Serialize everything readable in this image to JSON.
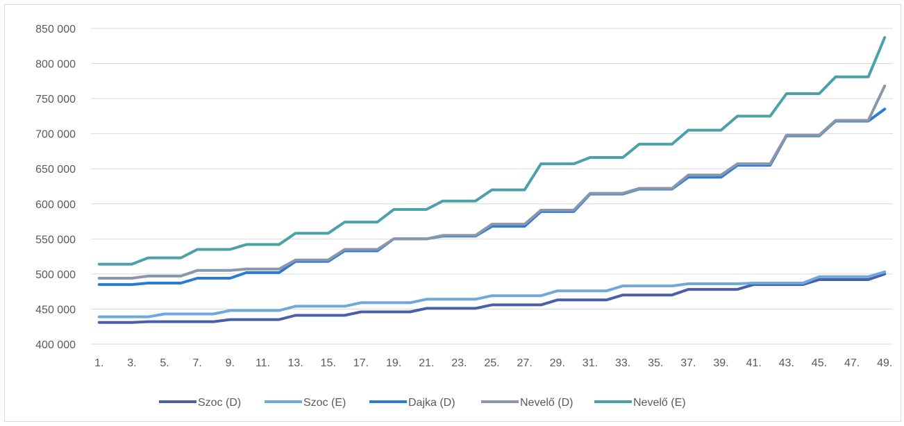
{
  "chart_data": {
    "type": "line",
    "title": "",
    "xlabel": "",
    "ylabel": "",
    "ylim": [
      400000,
      850000
    ],
    "ytick_step": 50000,
    "ytick_labels": [
      "400 000",
      "450 000",
      "500 000",
      "550 000",
      "600 000",
      "650 000",
      "700 000",
      "750 000",
      "800 000",
      "850 000"
    ],
    "x": [
      "1.",
      "2.",
      "3.",
      "4.",
      "5.",
      "6.",
      "7.",
      "8.",
      "9.",
      "10.",
      "11.",
      "12.",
      "13.",
      "14.",
      "15.",
      "16.",
      "17.",
      "18.",
      "19.",
      "20.",
      "21.",
      "22.",
      "23.",
      "24.",
      "25.",
      "26.",
      "27.",
      "28.",
      "29.",
      "30.",
      "31.",
      "32.",
      "33.",
      "34.",
      "35.",
      "36.",
      "37.",
      "38.",
      "39.",
      "40.",
      "41.",
      "42.",
      "43.",
      "44.",
      "45.",
      "46.",
      "47.",
      "48.",
      "49."
    ],
    "xtick_labels": [
      "1.",
      "3.",
      "5.",
      "7.",
      "9.",
      "11.",
      "13.",
      "15.",
      "17.",
      "19.",
      "21.",
      "23.",
      "25.",
      "27.",
      "29.",
      "31.",
      "33.",
      "35.",
      "37.",
      "39.",
      "41.",
      "43.",
      "45.",
      "47.",
      "49."
    ],
    "grid": true,
    "legend_position": "bottom",
    "series": [
      {
        "name": "Szoc (D)",
        "color": "#4a5fa8",
        "values": [
          431000,
          431000,
          431000,
          432000,
          432000,
          432000,
          432000,
          432000,
          435000,
          435000,
          435000,
          435000,
          441000,
          441000,
          441000,
          441000,
          446000,
          446000,
          446000,
          446000,
          451000,
          451000,
          451000,
          451000,
          456000,
          456000,
          456000,
          456000,
          463000,
          463000,
          463000,
          463000,
          470000,
          470000,
          470000,
          470000,
          478000,
          478000,
          478000,
          478000,
          485000,
          485000,
          485000,
          485000,
          492000,
          492000,
          492000,
          492000,
          500000
        ]
      },
      {
        "name": "Szoc (E)",
        "color": "#6fa8dc",
        "values": [
          439000,
          439000,
          439000,
          439000,
          443000,
          443000,
          443000,
          443000,
          448000,
          448000,
          448000,
          448000,
          454000,
          454000,
          454000,
          454000,
          459000,
          459000,
          459000,
          459000,
          464000,
          464000,
          464000,
          464000,
          469000,
          469000,
          469000,
          469000,
          476000,
          476000,
          476000,
          476000,
          483000,
          483000,
          483000,
          483000,
          486000,
          486000,
          486000,
          486000,
          487000,
          487000,
          487000,
          487000,
          496000,
          496000,
          496000,
          496000,
          503000
        ]
      },
      {
        "name": "Dajka (D)",
        "color": "#2b7bd6",
        "values": [
          485000,
          485000,
          485000,
          487000,
          487000,
          487000,
          494000,
          494000,
          494000,
          502000,
          502000,
          502000,
          518000,
          518000,
          518000,
          533000,
          533000,
          533000,
          550000,
          550000,
          550000,
          554000,
          554000,
          554000,
          568000,
          568000,
          568000,
          589000,
          589000,
          589000,
          614000,
          614000,
          614000,
          621000,
          621000,
          621000,
          638000,
          638000,
          638000,
          655000,
          655000,
          655000,
          697000,
          697000,
          697000,
          718000,
          718000,
          718000,
          735000
        ]
      },
      {
        "name": "Nevelő (D)",
        "color": "#8a97ab",
        "values": [
          494000,
          494000,
          494000,
          497000,
          497000,
          497000,
          505000,
          505000,
          505000,
          507000,
          507000,
          507000,
          520000,
          520000,
          520000,
          535000,
          535000,
          535000,
          550000,
          550000,
          550000,
          555000,
          555000,
          555000,
          571000,
          571000,
          571000,
          591000,
          591000,
          591000,
          615000,
          615000,
          615000,
          622000,
          622000,
          622000,
          641000,
          641000,
          641000,
          657000,
          657000,
          657000,
          698000,
          698000,
          698000,
          719000,
          719000,
          719000,
          768000
        ]
      },
      {
        "name": "Nevelő (E)",
        "color": "#4aa1a7",
        "values": [
          514000,
          514000,
          514000,
          523000,
          523000,
          523000,
          535000,
          535000,
          535000,
          542000,
          542000,
          542000,
          558000,
          558000,
          558000,
          574000,
          574000,
          574000,
          592000,
          592000,
          592000,
          604000,
          604000,
          604000,
          620000,
          620000,
          620000,
          657000,
          657000,
          657000,
          666000,
          666000,
          666000,
          685000,
          685000,
          685000,
          705000,
          705000,
          705000,
          725000,
          725000,
          725000,
          757000,
          757000,
          757000,
          781000,
          781000,
          781000,
          837000
        ]
      }
    ]
  },
  "colors": {
    "grid": "#d9d9d9",
    "tick_text": "#595959"
  }
}
